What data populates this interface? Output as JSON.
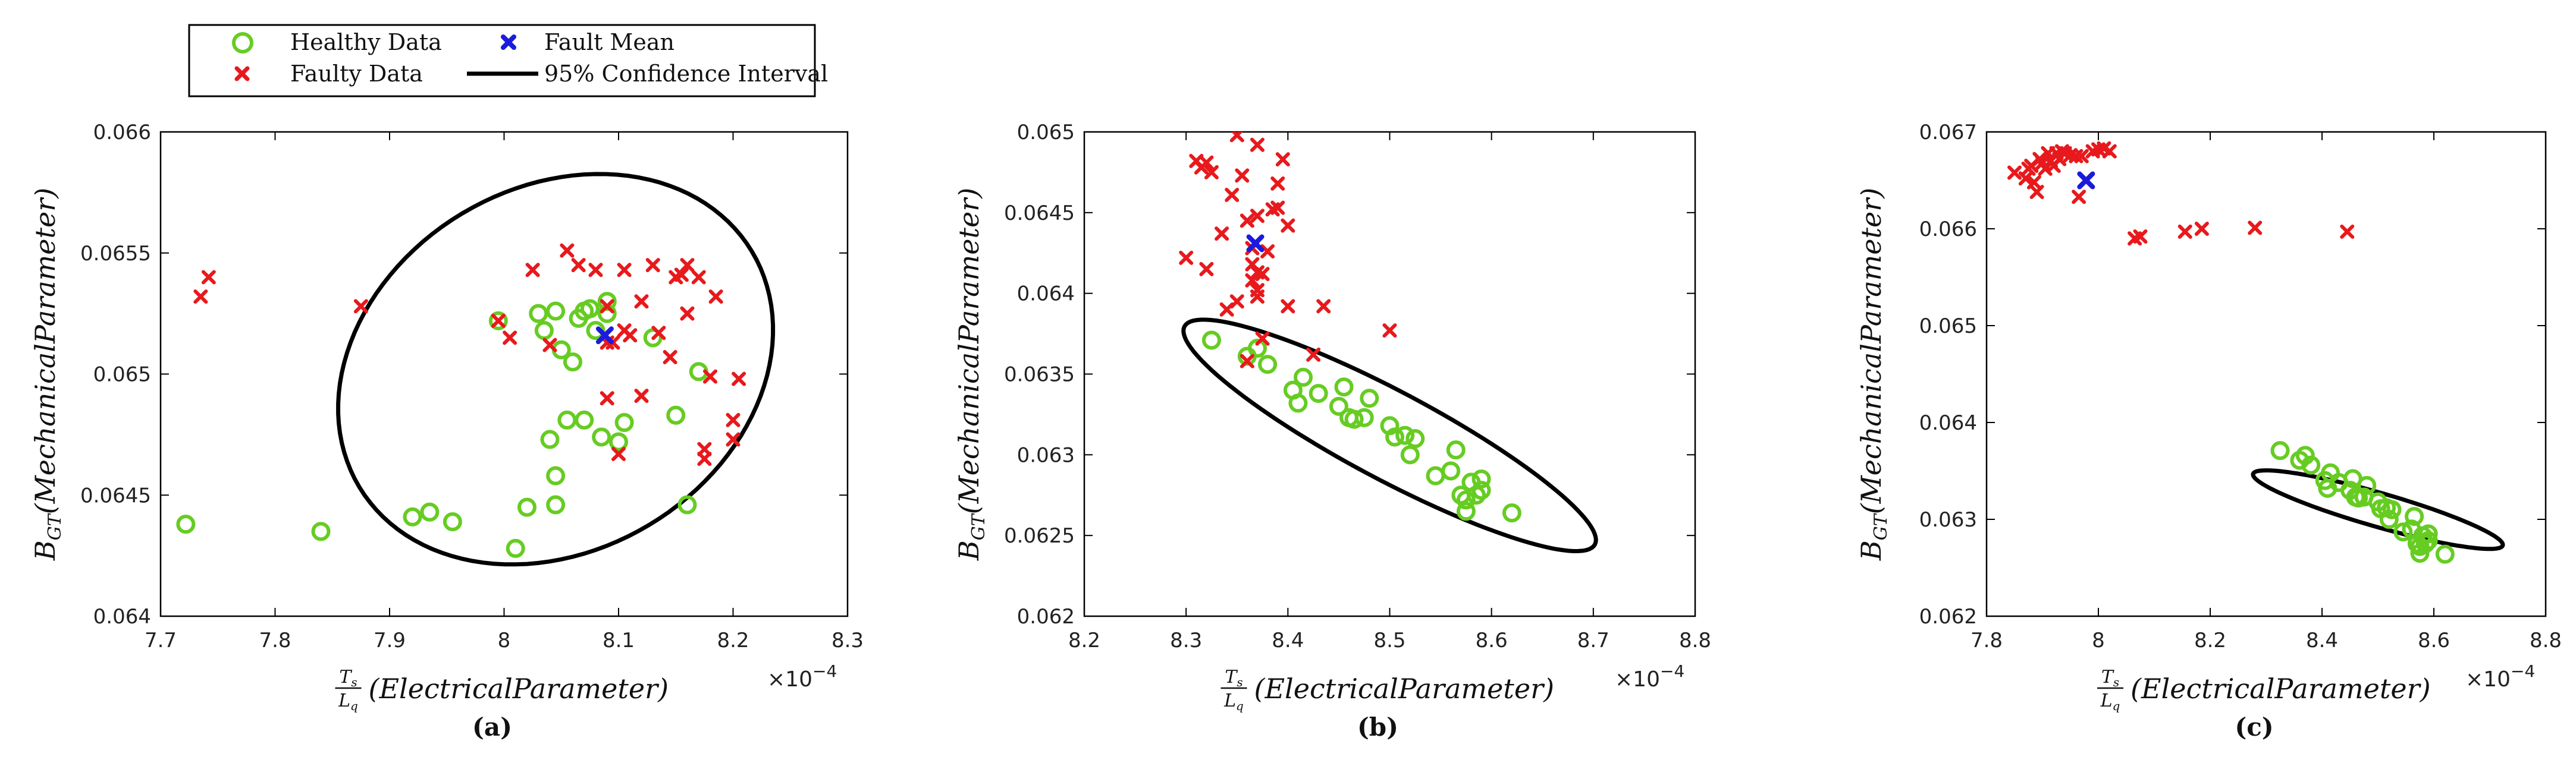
{
  "legend": {
    "entries": [
      {
        "label": "Healthy Data",
        "marker": "o",
        "color": "#66cc22"
      },
      {
        "label": "Fault Mean",
        "marker": "x",
        "color": "#1b1bdd"
      },
      {
        "label": "Faulty Data",
        "marker": "x",
        "color": "#e8191c"
      },
      {
        "label": "95% Confidence Interval",
        "marker": "line",
        "color": "#000000"
      }
    ]
  },
  "colors": {
    "healthy": "#66cc22",
    "faulty": "#e8191c",
    "mean": "#1b1bdd",
    "ellipse": "#000000"
  },
  "chart_data": [
    {
      "type": "scatter",
      "panel_label": "(a)",
      "xlabel": "T_s / L_q (Electrical Parameter)",
      "xlabel_num": "T",
      "xlabel_num_sub": "s",
      "xlabel_den": "L",
      "xlabel_den_sub": "q",
      "xlabel_text": "(ElectricalParameter)",
      "ylabel_main": "B",
      "ylabel_sub": "GT",
      "ylabel_text": "(MechanicalParameter)",
      "x_exponent": "×10",
      "x_exponent_power": "−4",
      "xlim": [
        7.7,
        8.3
      ],
      "ylim": [
        0.064,
        0.066
      ],
      "xticks": [
        7.7,
        7.8,
        7.9,
        8.0,
        8.1,
        8.2,
        8.3
      ],
      "xtick_labels": [
        "7.7",
        "7.8",
        "7.9",
        "8",
        "8.1",
        "8.2",
        "8.3"
      ],
      "yticks": [
        0.064,
        0.0645,
        0.065,
        0.0655,
        0.066
      ],
      "ytick_labels": [
        "0.064",
        "0.0645",
        "0.065",
        "0.0655",
        "0.066"
      ],
      "healthy": [
        [
          7.722,
          0.06438
        ],
        [
          7.84,
          0.06435
        ],
        [
          7.92,
          0.06441
        ],
        [
          7.935,
          0.06443
        ],
        [
          7.955,
          0.06439
        ],
        [
          7.995,
          0.06522
        ],
        [
          8.01,
          0.06428
        ],
        [
          8.02,
          0.06445
        ],
        [
          8.03,
          0.06525
        ],
        [
          8.035,
          0.06518
        ],
        [
          8.045,
          0.06526
        ],
        [
          8.04,
          0.06473
        ],
        [
          8.045,
          0.06458
        ],
        [
          8.045,
          0.06446
        ],
        [
          8.05,
          0.0651
        ],
        [
          8.055,
          0.06481
        ],
        [
          8.06,
          0.06505
        ],
        [
          8.065,
          0.06523
        ],
        [
          8.07,
          0.06526
        ],
        [
          8.07,
          0.06481
        ],
        [
          8.075,
          0.06527
        ],
        [
          8.08,
          0.06518
        ],
        [
          8.085,
          0.06474
        ],
        [
          8.09,
          0.06525
        ],
        [
          8.09,
          0.0653
        ],
        [
          8.1,
          0.06472
        ],
        [
          8.105,
          0.0648
        ],
        [
          8.13,
          0.06515
        ],
        [
          8.15,
          0.06483
        ],
        [
          8.16,
          0.06446
        ],
        [
          8.17,
          0.06501
        ]
      ],
      "faulty": [
        [
          7.735,
          0.06532
        ],
        [
          7.742,
          0.0654
        ],
        [
          7.875,
          0.06528
        ],
        [
          7.995,
          0.06522
        ],
        [
          8.005,
          0.06515
        ],
        [
          8.025,
          0.06543
        ],
        [
          8.04,
          0.06512
        ],
        [
          8.055,
          0.06551
        ],
        [
          8.065,
          0.06545
        ],
        [
          8.08,
          0.06543
        ],
        [
          8.09,
          0.06528
        ],
        [
          8.09,
          0.0649
        ],
        [
          8.09,
          0.06513
        ],
        [
          8.095,
          0.06513
        ],
        [
          8.1,
          0.06467
        ],
        [
          8.105,
          0.06518
        ],
        [
          8.105,
          0.06543
        ],
        [
          8.11,
          0.06516
        ],
        [
          8.12,
          0.0653
        ],
        [
          8.12,
          0.06491
        ],
        [
          8.13,
          0.06545
        ],
        [
          8.145,
          0.06507
        ],
        [
          8.15,
          0.0654
        ],
        [
          8.155,
          0.06541
        ],
        [
          8.16,
          0.06545
        ],
        [
          8.16,
          0.06525
        ],
        [
          8.17,
          0.0654
        ],
        [
          8.175,
          0.06469
        ],
        [
          8.175,
          0.06465
        ],
        [
          8.18,
          0.06499
        ],
        [
          8.185,
          0.06532
        ],
        [
          8.2,
          0.06473
        ],
        [
          8.2,
          0.06481
        ],
        [
          8.205,
          0.06498
        ],
        [
          8.135,
          0.06517
        ]
      ],
      "fault_mean": [
        8.088,
        0.06516
      ],
      "ellipse": {
        "cx": 8.045,
        "cy": 0.06502,
        "rx": 0.2,
        "ry": 0.00075,
        "rotation_deg": -31
      }
    },
    {
      "type": "scatter",
      "panel_label": "(b)",
      "xlabel": "T_s / L_q (Electrical Parameter)",
      "xlabel_num": "T",
      "xlabel_num_sub": "s",
      "xlabel_den": "L",
      "xlabel_den_sub": "q",
      "xlabel_text": "(ElectricalParameter)",
      "ylabel_main": "B",
      "ylabel_sub": "GT",
      "ylabel_text": "(MechanicalParameter)",
      "x_exponent": "×10",
      "x_exponent_power": "−4",
      "xlim": [
        8.2,
        8.8
      ],
      "ylim": [
        0.062,
        0.065
      ],
      "xticks": [
        8.2,
        8.3,
        8.4,
        8.5,
        8.6,
        8.7,
        8.8
      ],
      "xtick_labels": [
        "8.2",
        "8.3",
        "8.4",
        "8.5",
        "8.6",
        "8.7",
        "8.8"
      ],
      "yticks": [
        0.062,
        0.0625,
        0.063,
        0.0635,
        0.064,
        0.0645,
        0.065
      ],
      "ytick_labels": [
        "0.062",
        "0.0625",
        "0.063",
        "0.0635",
        "0.064",
        "0.0645",
        "0.065"
      ],
      "healthy": [
        [
          8.325,
          0.06371
        ],
        [
          8.36,
          0.06361
        ],
        [
          8.37,
          0.06366
        ],
        [
          8.38,
          0.06356
        ],
        [
          8.405,
          0.0634
        ],
        [
          8.41,
          0.06332
        ],
        [
          8.415,
          0.06348
        ],
        [
          8.43,
          0.06338
        ],
        [
          8.45,
          0.0633
        ],
        [
          8.455,
          0.06342
        ],
        [
          8.46,
          0.06323
        ],
        [
          8.465,
          0.06322
        ],
        [
          8.475,
          0.06323
        ],
        [
          8.48,
          0.06335
        ],
        [
          8.5,
          0.06318
        ],
        [
          8.505,
          0.06311
        ],
        [
          8.515,
          0.06312
        ],
        [
          8.52,
          0.063
        ],
        [
          8.525,
          0.0631
        ],
        [
          8.545,
          0.06287
        ],
        [
          8.56,
          0.0629
        ],
        [
          8.565,
          0.06303
        ],
        [
          8.57,
          0.06275
        ],
        [
          8.575,
          0.06272
        ],
        [
          8.575,
          0.06265
        ],
        [
          8.58,
          0.06283
        ],
        [
          8.585,
          0.06275
        ],
        [
          8.59,
          0.06285
        ],
        [
          8.59,
          0.06278
        ],
        [
          8.62,
          0.06264
        ]
      ],
      "faulty": [
        [
          8.3,
          0.06422
        ],
        [
          8.31,
          0.06482
        ],
        [
          8.315,
          0.06478
        ],
        [
          8.32,
          0.06415
        ],
        [
          8.32,
          0.06481
        ],
        [
          8.325,
          0.06475
        ],
        [
          8.335,
          0.06437
        ],
        [
          8.34,
          0.0639
        ],
        [
          8.345,
          0.06461
        ],
        [
          8.35,
          0.06395
        ],
        [
          8.35,
          0.06498
        ],
        [
          8.355,
          0.06473
        ],
        [
          8.36,
          0.06445
        ],
        [
          8.36,
          0.06358
        ],
        [
          8.365,
          0.06428
        ],
        [
          8.365,
          0.06418
        ],
        [
          8.365,
          0.06408
        ],
        [
          8.37,
          0.06413
        ],
        [
          8.37,
          0.06402
        ],
        [
          8.37,
          0.06398
        ],
        [
          8.37,
          0.06448
        ],
        [
          8.37,
          0.06492
        ],
        [
          8.375,
          0.06412
        ],
        [
          8.375,
          0.06372
        ],
        [
          8.38,
          0.06426
        ],
        [
          8.385,
          0.06452
        ],
        [
          8.39,
          0.06468
        ],
        [
          8.39,
          0.06453
        ],
        [
          8.395,
          0.06483
        ],
        [
          8.4,
          0.06442
        ],
        [
          8.4,
          0.06392
        ],
        [
          8.425,
          0.06362
        ],
        [
          8.435,
          0.06392
        ],
        [
          8.5,
          0.06377
        ]
      ],
      "fault_mean": [
        8.368,
        0.06431
      ],
      "ellipse": {
        "cx": 8.5,
        "cy": 0.06312,
        "rx": 0.2283,
        "ry": 0.000273,
        "rotation_deg": 28
      }
    },
    {
      "type": "scatter",
      "panel_label": "(c)",
      "xlabel": "T_s / L_q (Electrical Parameter)",
      "xlabel_num": "T",
      "xlabel_num_sub": "s",
      "xlabel_den": "L",
      "xlabel_den_sub": "q",
      "xlabel_text": "(ElectricalParameter)",
      "ylabel_main": "B",
      "ylabel_sub": "GT",
      "ylabel_text": "(MechanicalParameter)",
      "x_exponent": "×10",
      "x_exponent_power": "−4",
      "xlim": [
        7.8,
        8.8
      ],
      "ylim": [
        0.062,
        0.067
      ],
      "xticks": [
        7.8,
        8.0,
        8.2,
        8.4,
        8.6,
        8.8
      ],
      "xtick_labels": [
        "7.8",
        "8",
        "8.2",
        "8.4",
        "8.6",
        "8.8"
      ],
      "yticks": [
        0.062,
        0.063,
        0.064,
        0.065,
        0.066,
        0.067
      ],
      "ytick_labels": [
        "0.062",
        "0.063",
        "0.064",
        "0.065",
        "0.066",
        "0.067"
      ],
      "healthy": [
        [
          8.325,
          0.06371
        ],
        [
          8.36,
          0.06361
        ],
        [
          8.37,
          0.06366
        ],
        [
          8.38,
          0.06356
        ],
        [
          8.405,
          0.0634
        ],
        [
          8.41,
          0.06332
        ],
        [
          8.415,
          0.06348
        ],
        [
          8.43,
          0.06338
        ],
        [
          8.45,
          0.0633
        ],
        [
          8.455,
          0.06342
        ],
        [
          8.46,
          0.06323
        ],
        [
          8.465,
          0.06322
        ],
        [
          8.475,
          0.06323
        ],
        [
          8.48,
          0.06335
        ],
        [
          8.5,
          0.06318
        ],
        [
          8.505,
          0.06311
        ],
        [
          8.515,
          0.06312
        ],
        [
          8.52,
          0.063
        ],
        [
          8.525,
          0.0631
        ],
        [
          8.545,
          0.06287
        ],
        [
          8.56,
          0.0629
        ],
        [
          8.565,
          0.06303
        ],
        [
          8.57,
          0.06275
        ],
        [
          8.575,
          0.06272
        ],
        [
          8.575,
          0.06265
        ],
        [
          8.58,
          0.06283
        ],
        [
          8.585,
          0.06275
        ],
        [
          8.59,
          0.06285
        ],
        [
          8.59,
          0.06278
        ],
        [
          8.62,
          0.06264
        ]
      ],
      "faulty": [
        [
          7.85,
          0.06658
        ],
        [
          7.87,
          0.06652
        ],
        [
          7.875,
          0.06662
        ],
        [
          7.88,
          0.06665
        ],
        [
          7.885,
          0.06648
        ],
        [
          7.89,
          0.06638
        ],
        [
          7.895,
          0.06672
        ],
        [
          7.9,
          0.06668
        ],
        [
          7.905,
          0.06662
        ],
        [
          7.91,
          0.06678
        ],
        [
          7.915,
          0.0667
        ],
        [
          7.92,
          0.06665
        ],
        [
          7.925,
          0.06678
        ],
        [
          7.93,
          0.06672
        ],
        [
          7.935,
          0.0668
        ],
        [
          7.94,
          0.06678
        ],
        [
          7.95,
          0.06676
        ],
        [
          7.96,
          0.06675
        ],
        [
          7.965,
          0.06633
        ],
        [
          7.97,
          0.06675
        ],
        [
          7.99,
          0.0668
        ],
        [
          8.0,
          0.06682
        ],
        [
          8.01,
          0.06683
        ],
        [
          8.02,
          0.0668
        ],
        [
          8.065,
          0.0659
        ],
        [
          8.075,
          0.06592
        ],
        [
          8.155,
          0.06597
        ],
        [
          8.185,
          0.066
        ],
        [
          8.28,
          0.06601
        ],
        [
          8.445,
          0.06597
        ]
      ],
      "fault_mean": [
        7.978,
        0.0665
      ],
      "ellipse": {
        "cx": 8.5,
        "cy": 0.0631,
        "rx": 0.2323,
        "ry": 0.000175,
        "rotation_deg": 16
      }
    }
  ]
}
